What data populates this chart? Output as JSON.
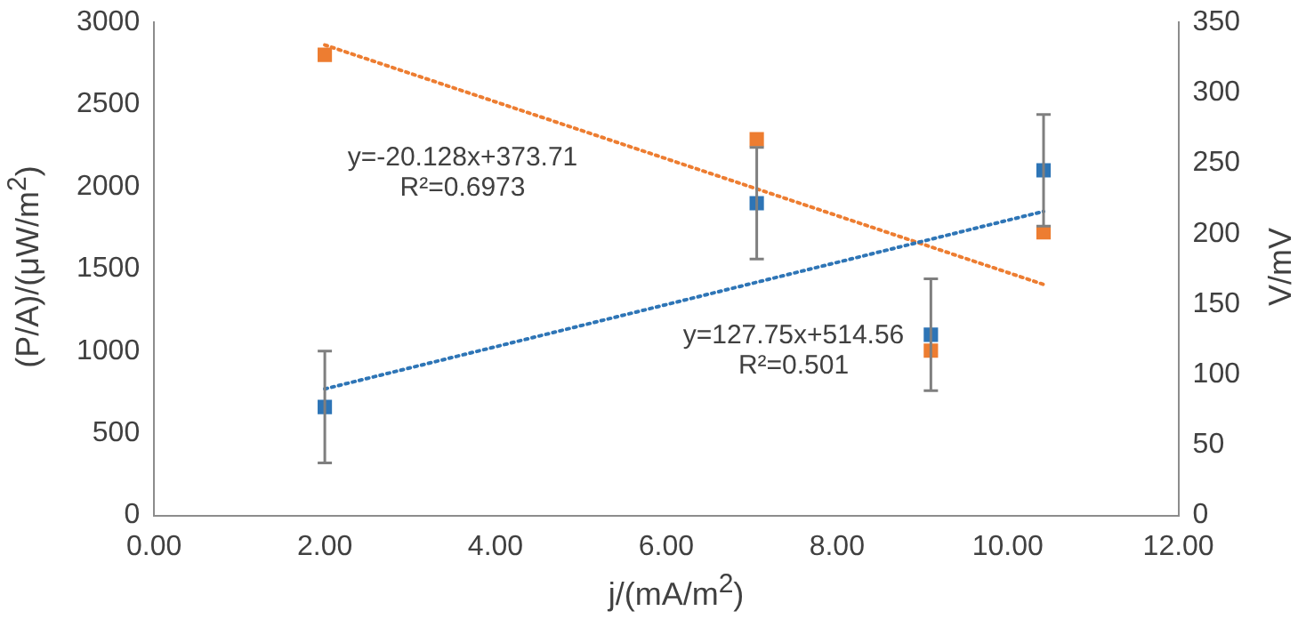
{
  "chart_data": {
    "type": "scatter",
    "xlabel": "j/(mA/m$^{2}$)",
    "ylabel": "(P/A)/(μW/m$^{2}$)",
    "y2label": "V/mV",
    "annotations": [
      "y=-20.128x+373.71\nR²=0.6973",
      "y=127.75x+514.56\nR²=0.501"
    ],
    "xlim": [
      0,
      12
    ],
    "xticks": [
      {
        "value": 0,
        "label": "0.00"
      },
      {
        "value": 2,
        "label": "2.00"
      },
      {
        "value": 4,
        "label": "4.00"
      },
      {
        "value": 6,
        "label": "6.00"
      },
      {
        "value": 8,
        "label": "8.00"
      },
      {
        "value": 10,
        "label": "10.00"
      },
      {
        "value": 12,
        "label": "12.00"
      }
    ],
    "ylim": [
      0,
      3000
    ],
    "yticks": [
      0,
      500,
      1000,
      1500,
      2000,
      2500,
      3000
    ],
    "y2lim": [
      0,
      350
    ],
    "y2ticks": [
      0,
      50,
      100,
      150,
      200,
      250,
      300,
      350
    ],
    "grid": false,
    "legend": false,
    "series": [
      {
        "type": "scatter",
        "color": "#2e75b6",
        "marker": "square",
        "x": [
          2,
          7.06,
          9.1,
          10.42
        ],
        "values": [
          660,
          1900,
          1100,
          2100
        ],
        "errors": [
          340,
          340,
          340,
          340
        ]
      },
      {
        "type": "scatter",
        "axis": "y2",
        "color": "#ed7d31",
        "marker": "square",
        "x": [
          2,
          7.06,
          9.1,
          10.42
        ],
        "values": [
          327,
          267,
          117,
          201
        ]
      },
      {
        "type": "line",
        "color": "#2e75b6",
        "marker": "none",
        "line_style": "dotted",
        "x": [
          2,
          10.42
        ],
        "values": [
          770,
          1850
        ]
      },
      {
        "type": "line",
        "axis": "y2",
        "color": "#ed7d31",
        "marker": "none",
        "line_style": "dotted",
        "x": [
          2,
          10.42
        ],
        "values": [
          334,
          164
        ]
      }
    ]
  }
}
